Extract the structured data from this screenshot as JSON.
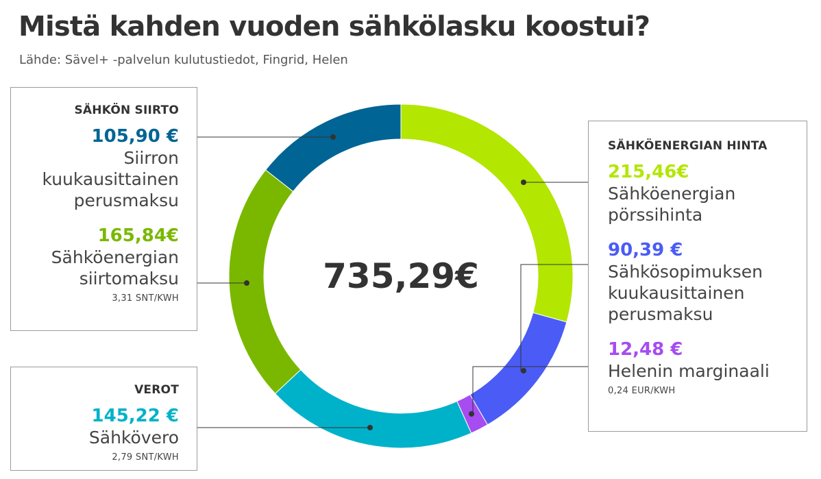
{
  "header": {
    "title": "Mistä kahden vuoden sähkölasku koostui?",
    "source": "Lähde: Sävel+ -palvelun kulutustiedot, Fingrid, Helen"
  },
  "boxes": {
    "transfer": {
      "title": "SÄHKÖN SIIRTO",
      "items": [
        {
          "amount": "105,90 €",
          "desc": "Siirron\nkuukausittainen\nperusmaksu",
          "unit": ""
        },
        {
          "amount": "165,84€",
          "desc": "Sähköenergian\nsiirtomaksu",
          "unit": "3,31 SNT/KWH"
        }
      ]
    },
    "taxes": {
      "title": "VEROT",
      "items": [
        {
          "amount": "145,22 €",
          "desc": "Sähkövero",
          "unit": "2,79 SNT/KWH"
        }
      ]
    },
    "energy": {
      "title": "SÄHKÖENERGIAN HINTA",
      "items": [
        {
          "amount": "215,46€",
          "desc": "Sähköenergian\npörssihinta",
          "unit": ""
        },
        {
          "amount": "90,39 €",
          "desc": "Sähkösopimuksen\nkuukausittainen\nperusmaksu",
          "unit": ""
        },
        {
          "amount": "12,48 €",
          "desc": "Helenin marginaali",
          "unit": "0,24 EUR/KWH"
        }
      ]
    }
  },
  "chart_data": {
    "type": "pie",
    "subtype": "donut",
    "total_label": "735,29€",
    "total": 735.29,
    "start": "top",
    "direction": "clockwise",
    "slices": [
      {
        "label": "Sähköenergian pörssihinta",
        "value": 215.46,
        "color": "#b3e600"
      },
      {
        "label": "Sähkösopimuksen kuukausittainen perusmaksu",
        "value": 90.39,
        "color": "#4a5cf5"
      },
      {
        "label": "Helenin marginaali",
        "value": 12.48,
        "color": "#a64cf0"
      },
      {
        "label": "Sähkövero",
        "value": 145.22,
        "color": "#00b2c9"
      },
      {
        "label": "Sähköenergian siirtomaksu",
        "value": 165.84,
        "color": "#7ab800"
      },
      {
        "label": "Siirron kuukausittainen perusmaksu",
        "value": 105.9,
        "color": "#006494"
      }
    ],
    "amount_colors": {
      "transfer_base": "#006494",
      "transfer_fee": "#7ab800",
      "tax": "#00b2c9",
      "energy_spot": "#b3e600",
      "contract_base": "#4a5cf5",
      "margin": "#a64cf0"
    }
  }
}
